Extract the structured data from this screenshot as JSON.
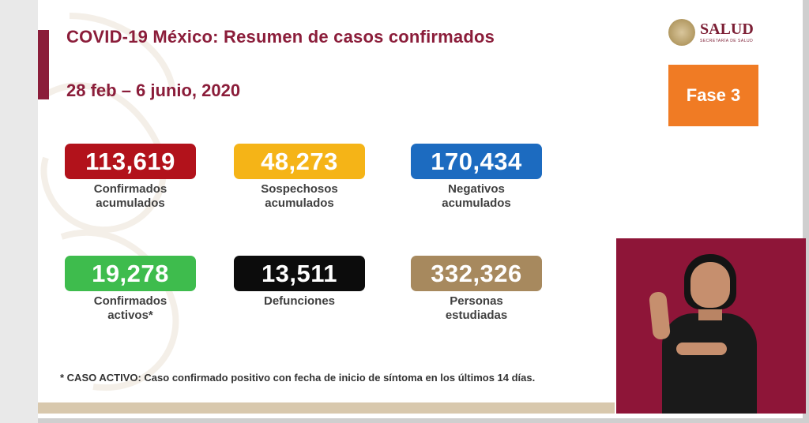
{
  "slide": {
    "title": "COVID-19 México: Resumen de casos confirmados",
    "date_range": "28 feb – 6 junio, 2020",
    "logo_name": "SALUD",
    "logo_sub": "SECRETARÍA DE SALUD",
    "phase": "Fase 3"
  },
  "stats": [
    {
      "value": "113,619",
      "label": "Confirmados\nacumulados",
      "color": "#b2121b"
    },
    {
      "value": "48,273",
      "label": "Sospechosos\nacumulados",
      "color": "#f5b417"
    },
    {
      "value": "170,434",
      "label": "Negativos\nacumulados",
      "color": "#1c6bc0"
    },
    {
      "value": "19,278",
      "label": "Confirmados\nactivos*",
      "color": "#3ebc4d"
    },
    {
      "value": "13,511",
      "label": "Defunciones",
      "color": "#0c0c0c"
    },
    {
      "value": "332,326",
      "label": "Personas\nestudiadas",
      "color": "#a7895e"
    }
  ],
  "footnote": "* CASO ACTIVO: Caso confirmado positivo con fecha de inicio de síntoma en los últimos 14 días.",
  "colors": {
    "brand": "#8b1d3a",
    "phase": "#f07b24",
    "interpreter_bg": "#8e1538"
  }
}
